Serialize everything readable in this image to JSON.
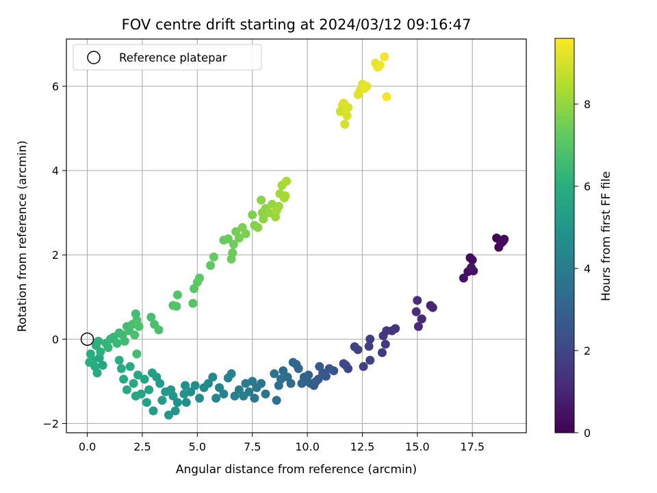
{
  "chart_data": {
    "type": "scatter",
    "title": "FOV centre drift starting at 2024/03/12 09:16:47",
    "xlabel": "Angular distance from reference (arcmin)",
    "ylabel": "Rotation from reference (arcmin)",
    "xlim": [
      -0.95,
      19.95
    ],
    "ylim": [
      -2.22,
      7.12
    ],
    "xticks": [
      0.0,
      2.5,
      5.0,
      7.5,
      10.0,
      12.5,
      15.0,
      17.5
    ],
    "xtick_labels": [
      "0.0",
      "2.5",
      "5.0",
      "7.5",
      "10.0",
      "12.5",
      "15.0",
      "17.5"
    ],
    "yticks": [
      -2,
      0,
      2,
      4,
      6
    ],
    "ytick_labels": [
      "−2",
      "0",
      "2",
      "4",
      "6"
    ],
    "grid": true,
    "legend": {
      "position": "top-left",
      "entries": [
        {
          "label": "Reference platepar",
          "marker": "open-circle"
        }
      ]
    },
    "reference_point": {
      "x": 0.0,
      "y": 0.0
    },
    "colorbar": {
      "label": "Hours from first FF file",
      "colormap": "viridis",
      "range": [
        0,
        9.6
      ],
      "ticks": [
        0,
        2,
        4,
        6,
        8
      ],
      "tick_labels": [
        "0",
        "2",
        "4",
        "6",
        "8"
      ]
    },
    "points": [
      [
        18.6,
        2.4,
        0.05
      ],
      [
        18.75,
        2.35,
        0.1
      ],
      [
        18.85,
        2.3,
        0.12
      ],
      [
        18.95,
        2.37,
        0.15
      ],
      [
        18.7,
        2.18,
        0.18
      ],
      [
        18.8,
        2.28,
        0.2
      ],
      [
        18.9,
        2.33,
        0.22
      ],
      [
        17.4,
        1.93,
        0.3
      ],
      [
        17.5,
        1.88,
        0.35
      ],
      [
        17.3,
        1.6,
        0.4
      ],
      [
        17.1,
        1.45,
        0.45
      ],
      [
        17.55,
        1.62,
        0.5
      ],
      [
        17.45,
        1.7,
        0.55
      ],
      [
        15.6,
        0.8,
        1.0
      ],
      [
        15.7,
        0.75,
        1.05
      ],
      [
        15.2,
        0.48,
        1.1
      ],
      [
        15.05,
        0.3,
        1.15
      ],
      [
        14.95,
        0.65,
        1.2
      ],
      [
        15.0,
        0.92,
        1.25
      ],
      [
        14.0,
        0.25,
        1.4
      ],
      [
        13.85,
        0.2,
        1.45
      ],
      [
        13.6,
        0.2,
        1.5
      ],
      [
        13.55,
        -0.12,
        1.55
      ],
      [
        13.45,
        0.08,
        1.6
      ],
      [
        13.4,
        -0.32,
        1.65
      ],
      [
        12.85,
        0.0,
        1.7
      ],
      [
        12.8,
        -0.17,
        1.75
      ],
      [
        12.85,
        -0.5,
        1.8
      ],
      [
        12.55,
        -0.65,
        1.85
      ],
      [
        12.3,
        -0.25,
        1.9
      ],
      [
        12.15,
        -0.18,
        1.95
      ],
      [
        11.85,
        -0.7,
        2.0
      ],
      [
        11.75,
        -0.62,
        2.05
      ],
      [
        11.65,
        -0.58,
        2.1
      ],
      [
        11.2,
        -0.75,
        2.5
      ],
      [
        11.0,
        -0.7,
        2.55
      ],
      [
        10.85,
        -0.88,
        2.6
      ],
      [
        10.7,
        -0.8,
        2.65
      ],
      [
        10.55,
        -0.65,
        2.7
      ],
      [
        10.5,
        -0.95,
        2.75
      ],
      [
        10.4,
        -1.0,
        2.8
      ],
      [
        10.3,
        -1.1,
        2.85
      ],
      [
        10.15,
        -1.05,
        2.9
      ],
      [
        10.05,
        -0.85,
        2.95
      ],
      [
        9.95,
        -1.0,
        3.0
      ],
      [
        9.85,
        -0.9,
        3.05
      ],
      [
        9.75,
        -1.05,
        3.1
      ],
      [
        9.6,
        -0.7,
        3.15
      ],
      [
        9.5,
        -0.6,
        3.2
      ],
      [
        9.35,
        -0.55,
        3.25
      ],
      [
        9.25,
        -1.05,
        3.3
      ],
      [
        9.1,
        -0.9,
        3.35
      ],
      [
        8.9,
        -0.75,
        3.4
      ],
      [
        8.8,
        -0.95,
        3.45
      ],
      [
        8.7,
        -1.1,
        3.5
      ],
      [
        8.6,
        -1.45,
        3.55
      ],
      [
        8.5,
        -0.82,
        3.6
      ],
      [
        8.1,
        -1.3,
        3.7
      ],
      [
        7.9,
        -1.05,
        3.75
      ],
      [
        7.7,
        -1.15,
        3.8
      ],
      [
        7.6,
        -1.4,
        3.85
      ],
      [
        7.5,
        -1.0,
        3.9
      ],
      [
        7.35,
        -1.25,
        3.95
      ],
      [
        7.2,
        -1.05,
        4.0
      ],
      [
        7.1,
        -1.35,
        4.05
      ],
      [
        6.9,
        -1.2,
        4.1
      ],
      [
        6.7,
        -1.35,
        4.15
      ],
      [
        6.55,
        -0.82,
        4.2
      ],
      [
        6.4,
        -0.92,
        4.25
      ],
      [
        6.2,
        -1.3,
        4.3
      ],
      [
        6.0,
        -1.15,
        4.35
      ],
      [
        5.85,
        -1.4,
        4.4
      ],
      [
        5.7,
        -0.9,
        4.45
      ],
      [
        5.5,
        -1.05,
        4.5
      ],
      [
        5.3,
        -1.15,
        4.55
      ],
      [
        5.1,
        -1.4,
        4.6
      ],
      [
        4.9,
        -1.1,
        4.65
      ],
      [
        4.7,
        -1.25,
        4.7
      ],
      [
        4.5,
        -1.5,
        4.75
      ],
      [
        4.45,
        -1.1,
        4.8
      ],
      [
        4.4,
        -1.3,
        4.85
      ],
      [
        4.1,
        -1.5,
        4.9
      ],
      [
        4.0,
        -1.7,
        4.95
      ],
      [
        3.9,
        -1.35,
        5.0
      ],
      [
        3.8,
        -1.2,
        5.05
      ],
      [
        3.7,
        -1.8,
        5.1
      ],
      [
        3.55,
        -1.25,
        5.15
      ],
      [
        3.4,
        -1.45,
        5.2
      ],
      [
        3.3,
        -1.05,
        5.25
      ],
      [
        3.15,
        -0.9,
        5.3
      ],
      [
        3.0,
        -1.7,
        5.35
      ],
      [
        2.95,
        -0.8,
        5.4
      ],
      [
        2.8,
        -1.2,
        5.45
      ],
      [
        2.7,
        -1.5,
        5.5
      ],
      [
        2.6,
        -0.95,
        5.55
      ],
      [
        2.45,
        -1.3,
        5.6
      ],
      [
        2.3,
        -0.85,
        5.65
      ],
      [
        2.2,
        -1.35,
        5.7
      ],
      [
        2.1,
        -1.05,
        5.75
      ],
      [
        1.95,
        -0.65,
        5.8
      ],
      [
        1.8,
        -1.2,
        5.85
      ],
      [
        1.65,
        -0.95,
        5.9
      ],
      [
        1.55,
        -0.7,
        5.95
      ],
      [
        1.45,
        -0.5,
        6.0
      ],
      [
        0.7,
        -0.62,
        5.7
      ],
      [
        0.55,
        -0.45,
        5.75
      ],
      [
        0.45,
        -0.8,
        5.8
      ],
      [
        0.35,
        -0.65,
        5.85
      ],
      [
        0.25,
        -0.5,
        5.9
      ],
      [
        0.15,
        -0.35,
        5.95
      ],
      [
        0.1,
        -0.55,
        6.0
      ],
      [
        0.4,
        -0.15,
        6.05
      ],
      [
        0.6,
        -0.3,
        6.1
      ],
      [
        0.5,
        -0.05,
        6.15
      ],
      [
        0.85,
        -0.1,
        6.2
      ],
      [
        0.95,
        -0.2,
        6.25
      ],
      [
        1.05,
        0.0,
        6.3
      ],
      [
        1.2,
        0.05,
        6.35
      ],
      [
        1.35,
        -0.1,
        6.4
      ],
      [
        1.45,
        0.15,
        6.45
      ],
      [
        1.6,
        0.1,
        6.5
      ],
      [
        1.7,
        -0.05,
        6.55
      ],
      [
        1.8,
        0.3,
        6.6
      ],
      [
        1.9,
        0.2,
        6.65
      ],
      [
        2.05,
        0.35,
        6.7
      ],
      [
        2.15,
        0.1,
        6.75
      ],
      [
        2.25,
        0.45,
        6.8
      ],
      [
        2.35,
        0.3,
        6.85
      ],
      [
        2.2,
        0.6,
        6.6
      ],
      [
        2.25,
        -0.35,
        6.6
      ],
      [
        2.9,
        0.52,
        6.7
      ],
      [
        3.05,
        0.35,
        6.75
      ],
      [
        3.25,
        0.22,
        6.8
      ],
      [
        3.9,
        0.8,
        6.9
      ],
      [
        4.1,
        1.05,
        6.95
      ],
      [
        4.05,
        0.78,
        6.95
      ],
      [
        4.8,
        0.85,
        7.0
      ],
      [
        4.85,
        1.2,
        7.05
      ],
      [
        5.0,
        1.35,
        7.1
      ],
      [
        5.1,
        1.45,
        7.15
      ],
      [
        5.6,
        1.75,
        7.2
      ],
      [
        5.75,
        1.95,
        7.25
      ],
      [
        6.2,
        2.35,
        7.3
      ],
      [
        6.4,
        2.38,
        7.35
      ],
      [
        6.55,
        1.9,
        7.35
      ],
      [
        6.6,
        2.05,
        7.4
      ],
      [
        6.65,
        2.25,
        7.45
      ],
      [
        6.75,
        2.55,
        7.5
      ],
      [
        6.9,
        2.4,
        7.55
      ],
      [
        7.05,
        2.65,
        7.6
      ],
      [
        7.2,
        2.5,
        7.65
      ],
      [
        7.5,
        2.95,
        7.7
      ],
      [
        7.6,
        2.7,
        7.75
      ],
      [
        7.75,
        2.65,
        7.8
      ],
      [
        7.9,
        3.3,
        7.85
      ],
      [
        8.0,
        2.85,
        7.9
      ],
      [
        8.1,
        3.1,
        7.95
      ],
      [
        8.25,
        3.0,
        8.0
      ],
      [
        8.4,
        3.2,
        8.05
      ],
      [
        8.55,
        2.9,
        8.1
      ],
      [
        8.7,
        3.15,
        8.15
      ],
      [
        8.75,
        3.45,
        8.2
      ],
      [
        8.85,
        3.65,
        8.25
      ],
      [
        9.0,
        3.4,
        8.3
      ],
      [
        9.05,
        3.75,
        8.35
      ],
      [
        8.95,
        3.35,
        8.3
      ],
      [
        8.6,
        3.05,
        8.2
      ],
      [
        7.95,
        3.0,
        7.9
      ],
      [
        11.5,
        5.4,
        8.9
      ],
      [
        11.6,
        5.55,
        8.95
      ],
      [
        11.7,
        5.1,
        9.0
      ],
      [
        11.75,
        5.45,
        9.0
      ],
      [
        11.8,
        5.3,
        9.05
      ],
      [
        11.85,
        5.5,
        9.05
      ],
      [
        11.65,
        5.6,
        9.1
      ],
      [
        12.3,
        5.8,
        9.15
      ],
      [
        12.4,
        5.9,
        9.2
      ],
      [
        12.5,
        6.05,
        9.2
      ],
      [
        12.6,
        5.95,
        9.25
      ],
      [
        12.7,
        6.0,
        9.25
      ],
      [
        13.1,
        6.55,
        9.3
      ],
      [
        13.2,
        6.45,
        9.35
      ],
      [
        13.3,
        6.5,
        9.4
      ],
      [
        13.5,
        6.7,
        9.45
      ],
      [
        13.6,
        5.75,
        9.5
      ]
    ]
  }
}
